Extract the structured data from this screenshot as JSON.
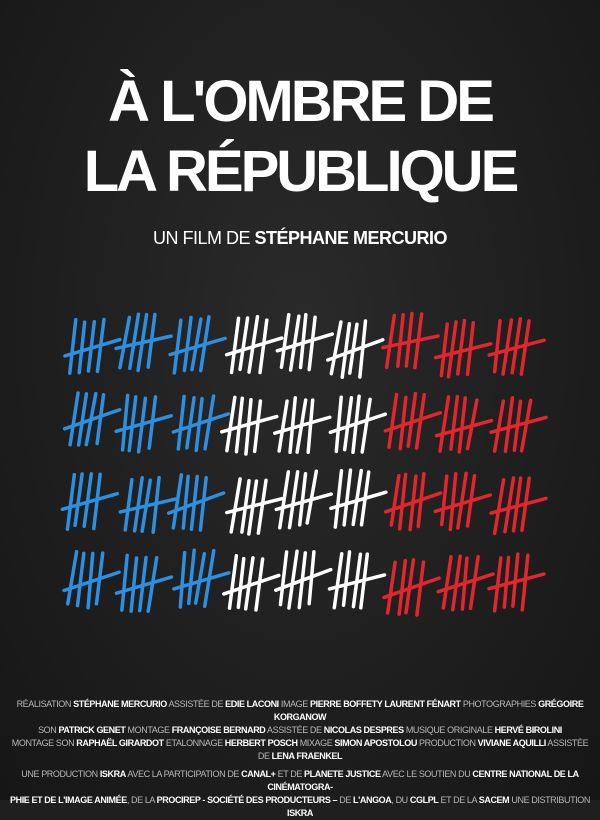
{
  "title": {
    "line1": "À L'OMBRE DE",
    "line2": "LA RÉPUBLIQUE"
  },
  "subtitle": {
    "prefix": "UN FILM DE",
    "director": "STÉPHANE MERCURIO"
  },
  "tally": {
    "colors": [
      "#2d8fe0",
      "#ffffff",
      "#e3262e"
    ],
    "rows": 4,
    "groups_per_color": 3,
    "marks_per_group": 5
  },
  "credits": [
    [
      [
        "r",
        "RÉALISATION "
      ],
      [
        "n",
        "STÉPHANE MERCURIO"
      ],
      [
        "r",
        " ASSISTÉE DE "
      ],
      [
        "n",
        "EDIE LACONI"
      ],
      [
        "r",
        " IMAGE "
      ],
      [
        "n",
        "PIERRE BOFFETY  LAURENT FÉNART"
      ],
      [
        "r",
        " PHOTOGRAPHIES "
      ],
      [
        "n",
        "GRÉGOIRE KORGANOW"
      ]
    ],
    [
      [
        "r",
        "SON "
      ],
      [
        "n",
        "PATRICK GENET"
      ],
      [
        "r",
        " MONTAGE "
      ],
      [
        "n",
        "FRANÇOISE BERNARD"
      ],
      [
        "r",
        " ASSISTÉE DE "
      ],
      [
        "n",
        "NICOLAS DESPRES"
      ],
      [
        "r",
        " MUSIQUE ORIGINALE "
      ],
      [
        "n",
        "HERVÉ BIROLINI"
      ]
    ],
    [
      [
        "r",
        "MONTAGE SON "
      ],
      [
        "n",
        "RAPHAËL GIRARDOT"
      ],
      [
        "r",
        " ETALONNAGE "
      ],
      [
        "n",
        "HERBERT POSCH"
      ],
      [
        "r",
        " MIXAGE "
      ],
      [
        "n",
        "SIMON APOSTOLOU"
      ],
      [
        "r",
        " PRODUCTION "
      ],
      [
        "n",
        "VIVIANE AQUILLI"
      ],
      [
        "r",
        " ASSISTÉE DE "
      ],
      [
        "n",
        "LENA FRAENKEL"
      ]
    ]
  ],
  "production": [
    [
      [
        "r",
        "UNE PRODUCTION "
      ],
      [
        "n",
        "ISKRA"
      ],
      [
        "r",
        " AVEC LA PARTICIPATION DE "
      ],
      [
        "n",
        "CANAL+"
      ],
      [
        "r",
        " ET DE "
      ],
      [
        "n",
        "PLANETE JUSTICE"
      ],
      [
        "r",
        " AVEC LE SOUTIEN DU "
      ],
      [
        "n",
        "CENTRE NATIONAL DE LA CINÉMATOGRA-"
      ]
    ],
    [
      [
        "n",
        "PHIE ET DE L'IMAGE ANIMÉE"
      ],
      [
        "r",
        ", DE LA "
      ],
      [
        "n",
        "PROCIREP - SOCIÉTÉ DES PRODUCTEURS –"
      ],
      [
        "r",
        " DE "
      ],
      [
        "n",
        "L'ANGOA"
      ],
      [
        "r",
        ", DU "
      ],
      [
        "n",
        "CGLPL"
      ],
      [
        "r",
        " ET DE LA "
      ],
      [
        "n",
        "SACEM"
      ],
      [
        "r",
        " UNE DISTRIBUTION "
      ],
      [
        "n",
        "ISKRA"
      ]
    ]
  ]
}
